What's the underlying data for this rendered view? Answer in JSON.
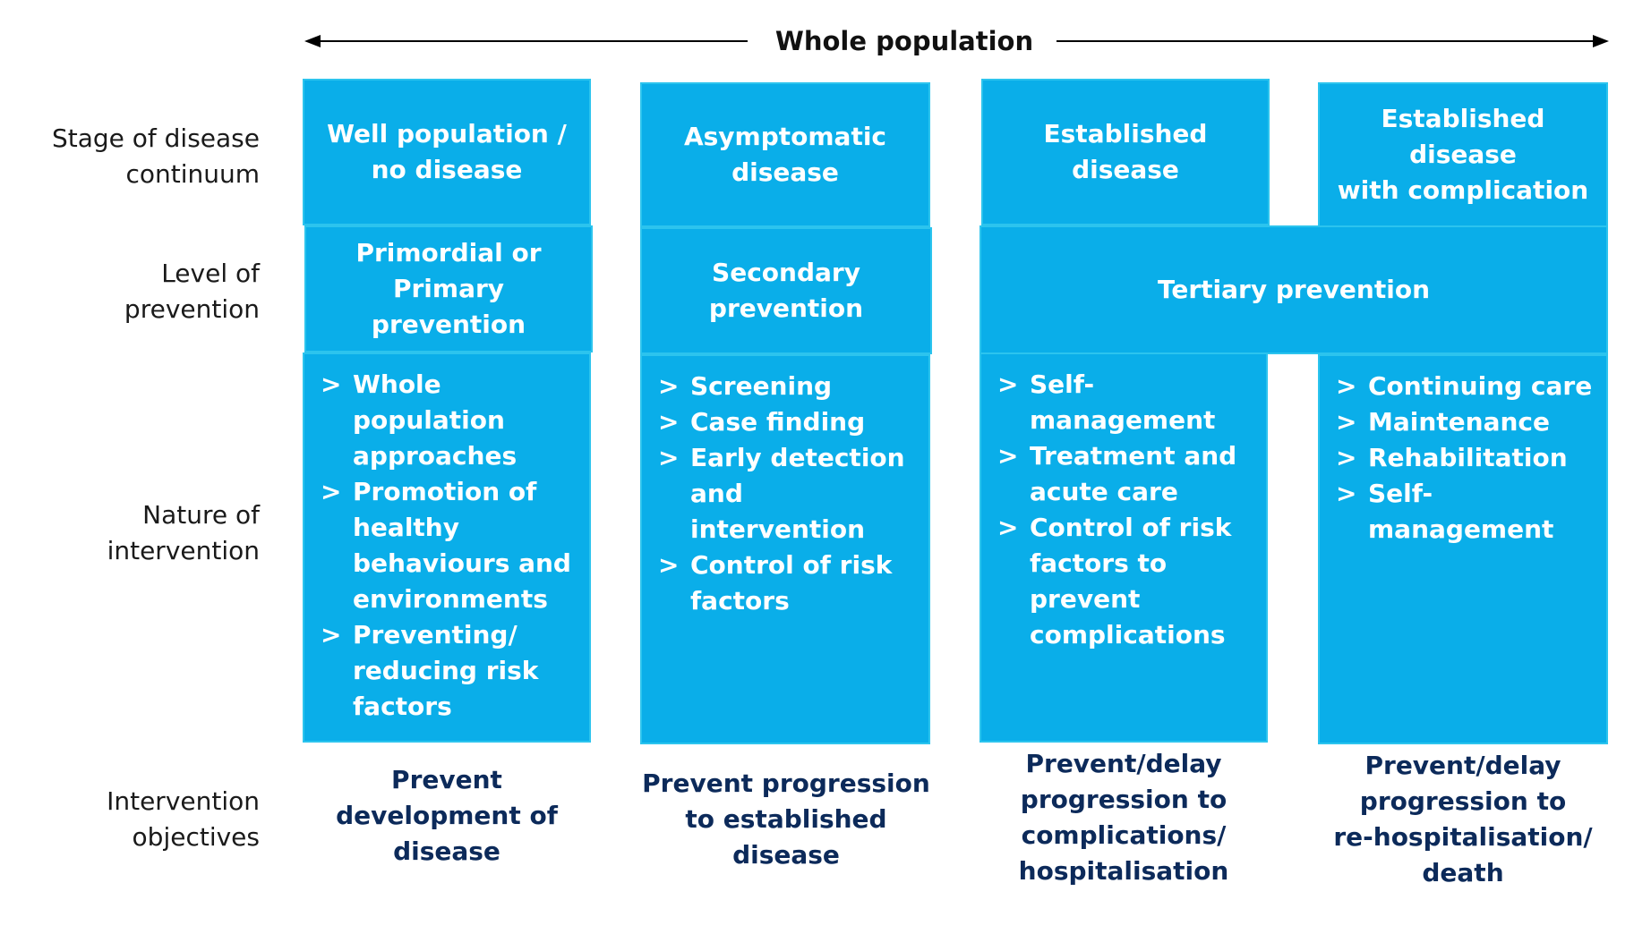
{
  "header": {
    "title": "Whole population"
  },
  "row_labels": {
    "stage": "Stage of disease\ncontinuum",
    "level": "Level of\nprevention",
    "nature": "Nature of\nintervention",
    "objectives": "Intervention\nobjectives"
  },
  "stages": [
    "Well population /\nno disease",
    "Asymptomatic\ndisease",
    "Established disease",
    "Established disease\nwith complication"
  ],
  "levels": [
    "Primordial or\nPrimary prevention",
    "Secondary\nprevention",
    "Tertiary prevention"
  ],
  "bullet_marker": ">",
  "interventions": [
    [
      "Whole population approaches",
      "Promotion of healthy behaviours and environments",
      "Preventing/ reducing risk factors"
    ],
    [
      "Screening",
      "Case finding",
      "Early detection and intervention",
      "Control of risk factors"
    ],
    [
      "Self-management",
      "Treatment and acute care",
      "Control of risk factors to prevent complications"
    ],
    [
      "Continuing care",
      "Maintenance",
      "Rehabilitation",
      "Self-management"
    ]
  ],
  "objectives": [
    "Prevent\ndevelopment of\ndisease",
    "Prevent progression\nto established\ndisease",
    "Prevent/delay\nprogression to\ncomplications/\nhospitalisation",
    "Prevent/delay\nprogression to\nre-hospitalisation/\ndeath"
  ],
  "colors": {
    "box_fill": "#0aaee9",
    "box_border": "#2cc4ee",
    "objective_text": "#0c2a5a"
  }
}
